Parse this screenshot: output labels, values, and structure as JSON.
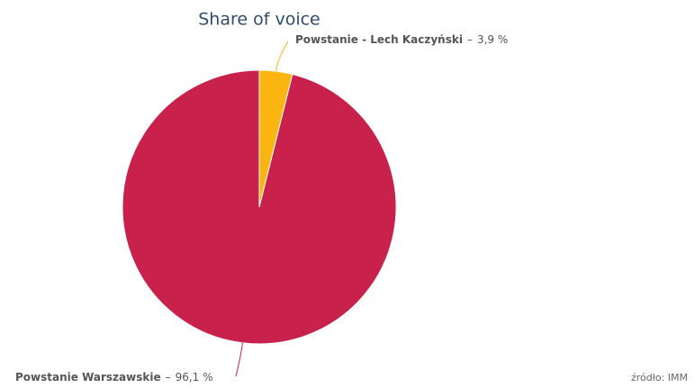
{
  "chart_data": {
    "type": "pie",
    "title": "Share of voice",
    "categories": [
      "Powstanie - Lech Kaczyński",
      "Powstanie Warszawskie"
    ],
    "values": [
      3.9,
      96.1
    ],
    "value_labels": [
      "3,9 %",
      "96,1 %"
    ],
    "separator": "–",
    "colors": [
      "#fbb511",
      "#c8214c"
    ],
    "source": "źródło: IMM"
  }
}
